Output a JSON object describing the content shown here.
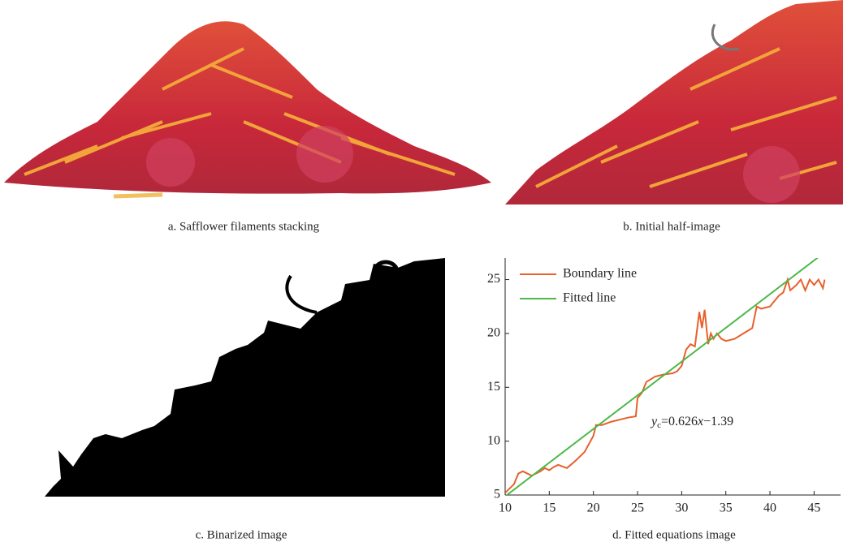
{
  "captions": [
    "a. Safflower filaments stacking",
    "b. Initial half-image",
    "c. Binarized image",
    "d. Fitted equations image"
  ],
  "chart_data": {
    "type": "line",
    "xlim": [
      10,
      48
    ],
    "ylim": [
      5,
      27
    ],
    "xticks": [
      10,
      15,
      20,
      25,
      30,
      35,
      40,
      45
    ],
    "yticks": [
      5,
      10,
      15,
      20,
      25
    ],
    "legend": "upper left",
    "annotation": [
      "y",
      "c",
      "=0.626",
      "x",
      "−1.39"
    ],
    "series": [
      {
        "name": "Boundary line",
        "color": "#e8602c",
        "x": [
          10,
          11,
          11.5,
          12,
          12.5,
          13,
          13.5,
          14,
          14.5,
          15,
          15.5,
          16,
          17,
          18,
          19,
          20,
          20.3,
          21,
          22,
          23,
          24,
          24.8,
          25,
          25.5,
          26,
          27,
          28,
          29,
          29.5,
          30,
          30.5,
          31,
          31.5,
          32,
          32.3,
          32.6,
          33,
          33.3,
          33.6,
          34,
          34.5,
          35,
          36,
          37,
          38,
          38.5,
          39,
          40,
          41,
          41.5,
          42,
          42.3,
          43,
          43.5,
          44,
          44.5,
          45,
          45.5,
          46,
          46.2
        ],
        "values": [
          5.2,
          6,
          7,
          7.2,
          7,
          6.8,
          7,
          7.2,
          7.5,
          7.3,
          7.6,
          7.8,
          7.5,
          8.2,
          9,
          10.5,
          11.5,
          11.5,
          11.8,
          12,
          12.2,
          12.3,
          14,
          14.5,
          15.5,
          16,
          16.2,
          16.3,
          16.5,
          17,
          18.5,
          19,
          18.8,
          22,
          20.5,
          22.2,
          19,
          20,
          19.5,
          20,
          19.5,
          19.3,
          19.5,
          20,
          20.5,
          22.5,
          22.3,
          22.5,
          23.5,
          23.8,
          25,
          24,
          24.5,
          25,
          24,
          25,
          24.5,
          25,
          24.2,
          25
        ]
      },
      {
        "name": "Fitted line",
        "color": "#4cb84a",
        "x": [
          10,
          45.4
        ],
        "values": [
          4.87,
          27.03
        ]
      }
    ]
  }
}
